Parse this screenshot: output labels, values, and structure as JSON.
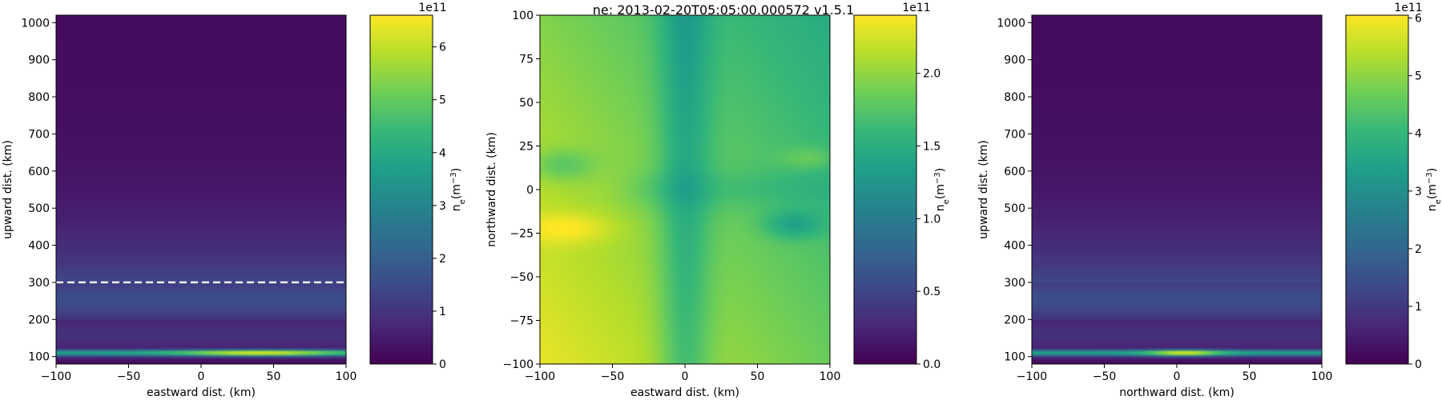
{
  "suptitle": "ne: 2013-02-20T05:05:00.000572  v1.5.1",
  "colors": {
    "viridis": [
      "#440154",
      "#482878",
      "#3e4989",
      "#31688e",
      "#26828e",
      "#1f9e89",
      "#35b779",
      "#6ece58",
      "#b5de2b",
      "#fde725"
    ],
    "frame": "#000000",
    "dash": "#ffffff"
  },
  "chart_data": [
    {
      "type": "heatmap",
      "name": "altitude-east slice",
      "xlabel": "eastward dist. (km)",
      "ylabel": "upward dist. (km)",
      "xlim": [
        -100,
        100
      ],
      "ylim": [
        80,
        1020
      ],
      "xticks": [
        -100,
        -50,
        0,
        50,
        100
      ],
      "yticks": [
        100,
        200,
        300,
        400,
        500,
        600,
        700,
        800,
        900,
        1000
      ],
      "reference_line": {
        "y": 300,
        "style": "dashed",
        "color": "#ffffff"
      },
      "field": {
        "peak_altitude_km": 110,
        "peak_value_e11": 6.6,
        "peak_center_x_km": 40
      },
      "colorbar": {
        "label": "n_e(m^-3)",
        "label_main": "n",
        "label_sub": "e",
        "label_paren": "(m",
        "label_sup": "−3",
        "label_close": ")",
        "exponent": "1e11",
        "vmin": 0,
        "vmax": 6.6,
        "ticks": [
          0,
          1,
          2,
          3,
          4,
          5,
          6
        ],
        "tick_labels": [
          "0",
          "1",
          "2",
          "3",
          "4",
          "5",
          "6"
        ]
      }
    },
    {
      "type": "heatmap",
      "name": "horizontal slice",
      "xlabel": "eastward dist. (km)",
      "ylabel": "northward dist. (km)",
      "xlim": [
        -100,
        100
      ],
      "ylim": [
        -100,
        100
      ],
      "xticks": [
        -100,
        -50,
        0,
        50,
        100
      ],
      "yticks": [
        -100,
        -75,
        -50,
        -25,
        0,
        25,
        50,
        75,
        100
      ],
      "colorbar": {
        "label": "n_e(m^-3)",
        "label_main": "n",
        "label_sub": "e",
        "label_paren": "(m",
        "label_sup": "−3",
        "label_close": ")",
        "exponent": "1e11",
        "vmin": 0,
        "vmax": 2.4,
        "ticks": [
          0.0,
          0.5,
          1.0,
          1.5,
          2.0
        ],
        "tick_labels": [
          "0.0",
          "0.5",
          "1.0",
          "1.5",
          "2.0"
        ]
      }
    },
    {
      "type": "heatmap",
      "name": "altitude-north slice",
      "xlabel": "northward dist. (km)",
      "ylabel": "upward dist. (km)",
      "xlim": [
        -100,
        100
      ],
      "ylim": [
        80,
        1020
      ],
      "xticks": [
        -100,
        -50,
        0,
        50,
        100
      ],
      "yticks": [
        100,
        200,
        300,
        400,
        500,
        600,
        700,
        800,
        900,
        1000
      ],
      "field": {
        "peak_altitude_km": 110,
        "peak_value_e11": 6.0,
        "peak_center_x_km": 5
      },
      "colorbar": {
        "label": "n_e(m^-3)",
        "label_main": "n",
        "label_sub": "e",
        "label_paren": "(m",
        "label_sup": "−3",
        "label_close": ")",
        "exponent": "1e11",
        "vmin": 0,
        "vmax": 6.05,
        "ticks": [
          0,
          1,
          2,
          3,
          4,
          5,
          6
        ],
        "tick_labels": [
          "0",
          "1",
          "2",
          "3",
          "4",
          "5",
          "6"
        ]
      }
    }
  ]
}
